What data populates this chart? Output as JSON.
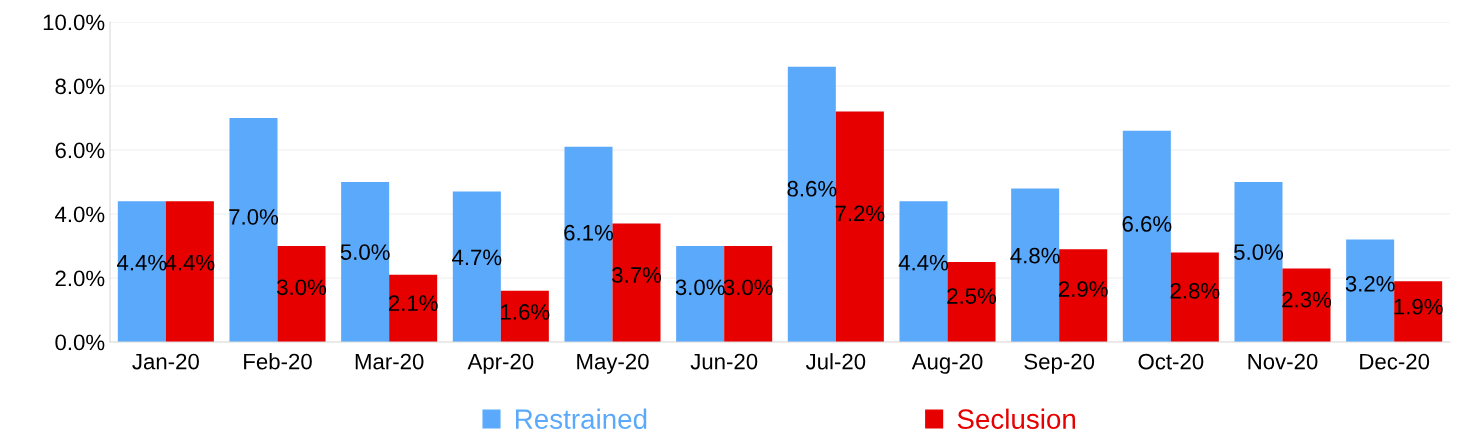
{
  "chart_data": {
    "type": "bar",
    "categories": [
      "Jan-20",
      "Feb-20",
      "Mar-20",
      "Apr-20",
      "May-20",
      "Jun-20",
      "Jul-20",
      "Aug-20",
      "Sep-20",
      "Oct-20",
      "Nov-20",
      "Dec-20"
    ],
    "series": [
      {
        "name": "Restrained",
        "color": "#5aa9fb",
        "values": [
          4.4,
          7.0,
          5.0,
          4.7,
          6.1,
          3.0,
          8.6,
          4.4,
          4.8,
          6.6,
          5.0,
          3.2
        ],
        "value_labels": [
          "4.4%",
          "7.0%",
          "5.0%",
          "4.7%",
          "6.1%",
          "3.0%",
          "8.6%",
          "4.4%",
          "4.8%",
          "6.6%",
          "5.0%",
          "3.2%"
        ]
      },
      {
        "name": "Seclusion",
        "color": "#e60000",
        "values": [
          4.4,
          3.0,
          2.1,
          1.6,
          3.7,
          3.0,
          7.2,
          2.5,
          2.9,
          2.8,
          2.3,
          1.9
        ],
        "value_labels": [
          "4.4%",
          "3.0%",
          "2.1%",
          "1.6%",
          "3.7%",
          "3.0%",
          "7.2%",
          "2.5%",
          "2.9%",
          "2.8%",
          "2.3%",
          "1.9%"
        ]
      }
    ],
    "ylim": [
      0,
      10
    ],
    "yticks": [
      {
        "value": 0,
        "label": "0.0%"
      },
      {
        "value": 2,
        "label": "2.0%"
      },
      {
        "value": 4,
        "label": "4.0%"
      },
      {
        "value": 6,
        "label": "6.0%"
      },
      {
        "value": 8,
        "label": "8.0%"
      },
      {
        "value": 10,
        "label": "10.0%"
      }
    ],
    "grid": "y",
    "legend": "bottom"
  }
}
